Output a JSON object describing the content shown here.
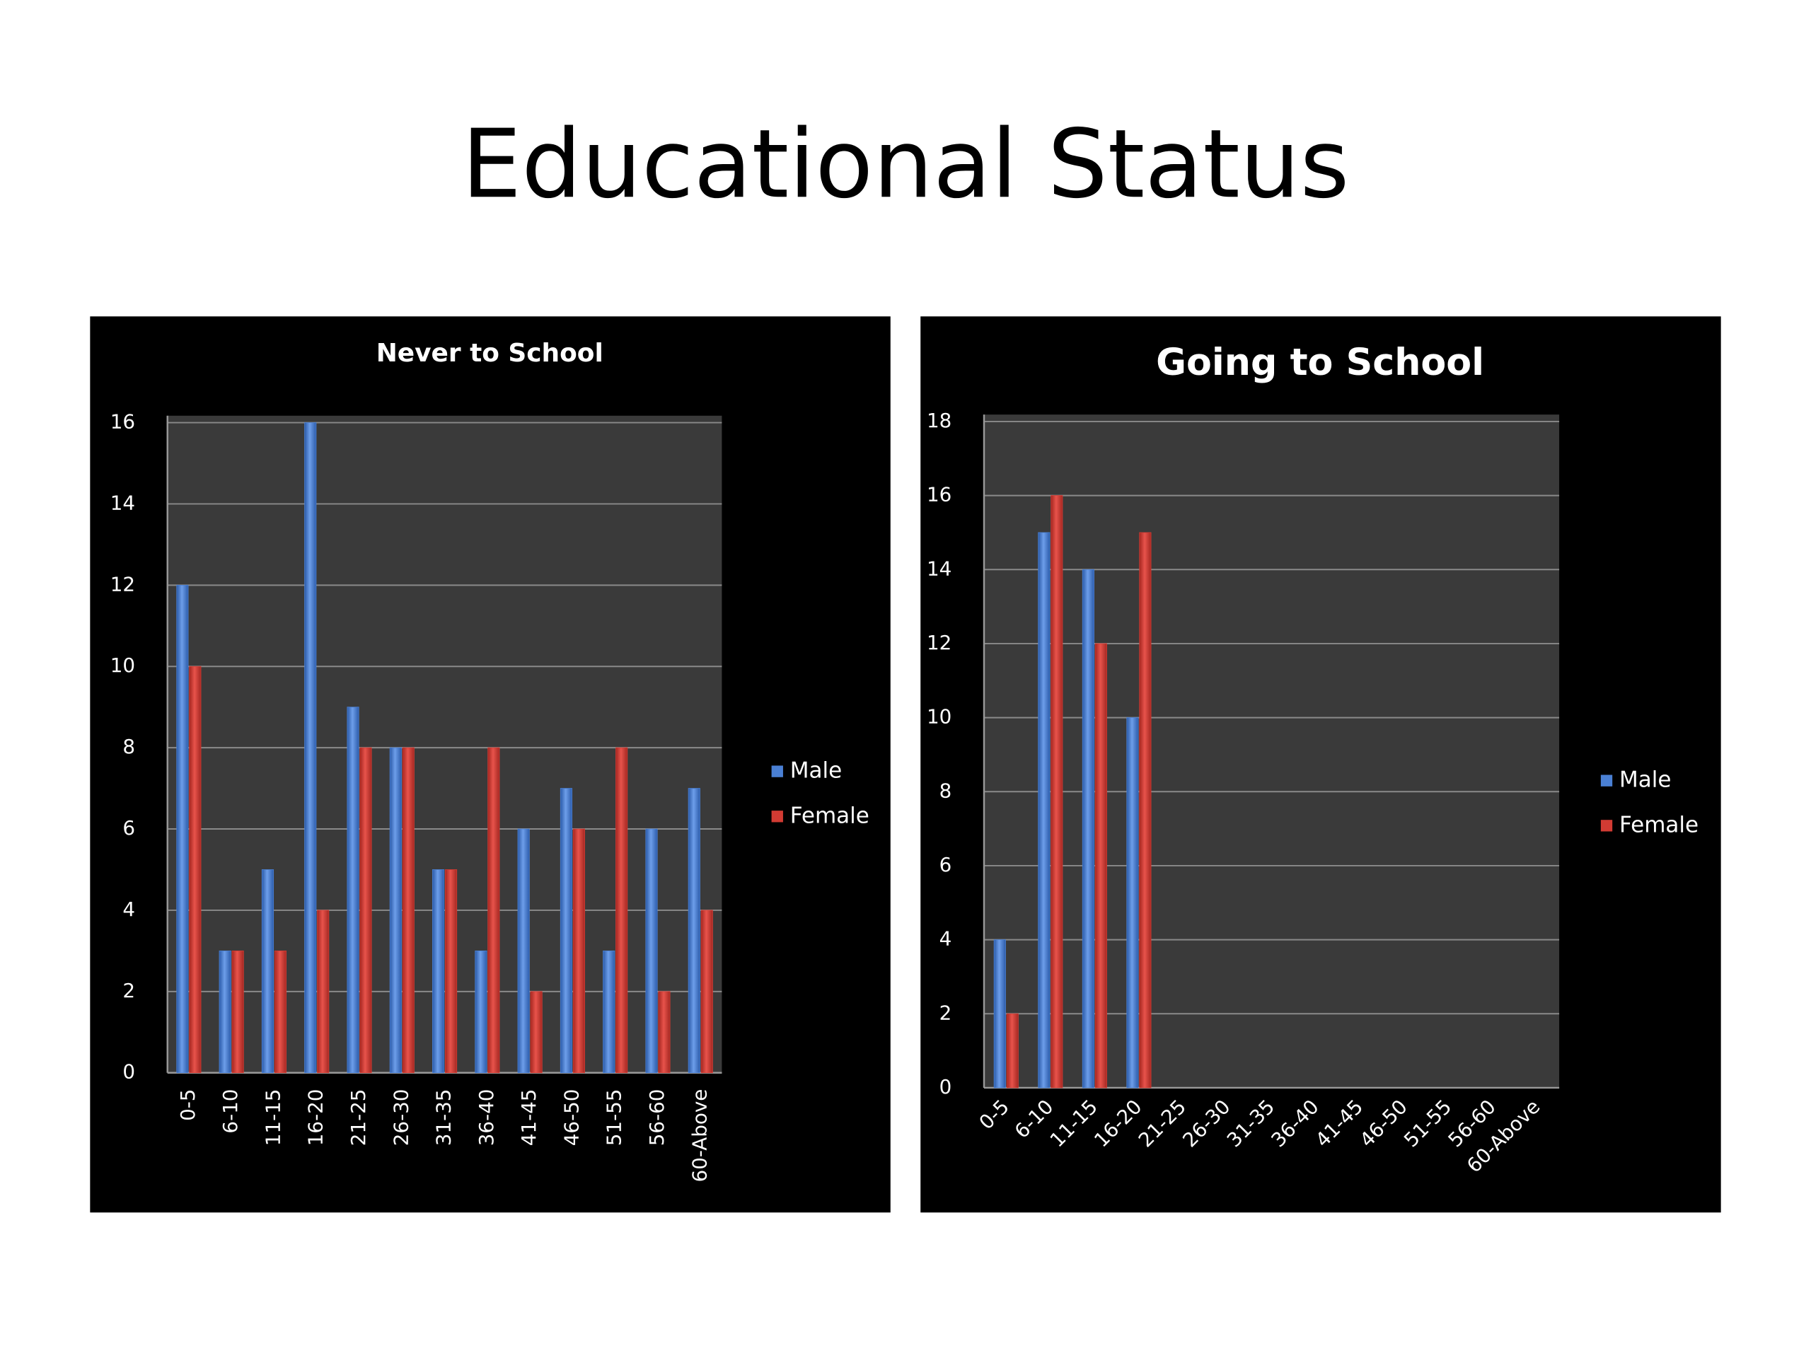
{
  "title": "Educational Status",
  "chart_data": [
    {
      "type": "bar",
      "title": "Never to School",
      "categories": [
        "0-5",
        "6-10",
        "11-15",
        "16-20",
        "21-25",
        "26-30",
        "31-35",
        "36-40",
        "41-45",
        "46-50",
        "51-55",
        "56-60",
        "60-Above"
      ],
      "series": [
        {
          "name": "Male",
          "color": "#4a80d4",
          "values": [
            12,
            3,
            5,
            16,
            9,
            8,
            5,
            3,
            6,
            7,
            3,
            6,
            7
          ]
        },
        {
          "name": "Female",
          "color": "#d23b33",
          "values": [
            10,
            3,
            3,
            4,
            8,
            8,
            5,
            8,
            2,
            6,
            8,
            2,
            4
          ]
        }
      ],
      "ylim": [
        0,
        16
      ],
      "yticks": [
        0,
        2,
        4,
        6,
        8,
        10,
        12,
        14,
        16
      ],
      "grid": true,
      "legend": "right"
    },
    {
      "type": "bar",
      "title": "Going to School",
      "categories": [
        "0-5",
        "6-10",
        "11-15",
        "16-20",
        "21-25",
        "26-30",
        "31-35",
        "36-40",
        "41-45",
        "46-50",
        "51-55",
        "56-60",
        "60-Above"
      ],
      "series": [
        {
          "name": "Male",
          "color": "#4a80d4",
          "values": [
            4,
            15,
            14,
            10,
            null,
            null,
            null,
            null,
            null,
            null,
            null,
            null,
            null
          ]
        },
        {
          "name": "Female",
          "color": "#d23b33",
          "values": [
            2,
            16,
            12,
            15,
            null,
            null,
            null,
            null,
            null,
            null,
            null,
            null,
            null
          ]
        }
      ],
      "ylim": [
        0,
        18
      ],
      "yticks": [
        0,
        2,
        4,
        6,
        8,
        10,
        12,
        14,
        16,
        18
      ],
      "grid": true,
      "legend": "right"
    }
  ]
}
